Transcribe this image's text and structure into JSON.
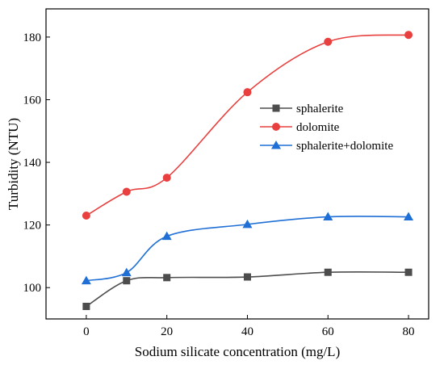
{
  "chart_data": {
    "type": "line",
    "title": "",
    "xlabel": "Sodium silicate concentration (mg/L)",
    "ylabel": "Turbidity (NTU)",
    "xlim": [
      -10,
      85
    ],
    "ylim": [
      90,
      189
    ],
    "xticks": [
      0,
      20,
      40,
      60,
      80
    ],
    "yticks": [
      100,
      120,
      140,
      160,
      180
    ],
    "legend_position": "upper-right",
    "grid": false,
    "series": [
      {
        "name": "sphalerite",
        "color": "#4d4d4d",
        "marker": "square",
        "x": [
          0,
          10,
          20,
          40,
          60,
          80
        ],
        "y": [
          94.0,
          102.2,
          103.2,
          103.4,
          104.9,
          104.9
        ]
      },
      {
        "name": "dolomite",
        "color": "#e8403f",
        "marker": "circle",
        "x": [
          0,
          10,
          20,
          40,
          60,
          80
        ],
        "y": [
          123.0,
          130.6,
          135.1,
          162.4,
          178.5,
          180.7
        ]
      },
      {
        "name": "sphalerite+dolomite",
        "color": "#1f6fd6",
        "marker": "triangle",
        "x": [
          0,
          10,
          20,
          40,
          60,
          80
        ],
        "y": [
          102.2,
          104.8,
          116.4,
          120.2,
          122.6,
          122.6
        ]
      }
    ]
  }
}
